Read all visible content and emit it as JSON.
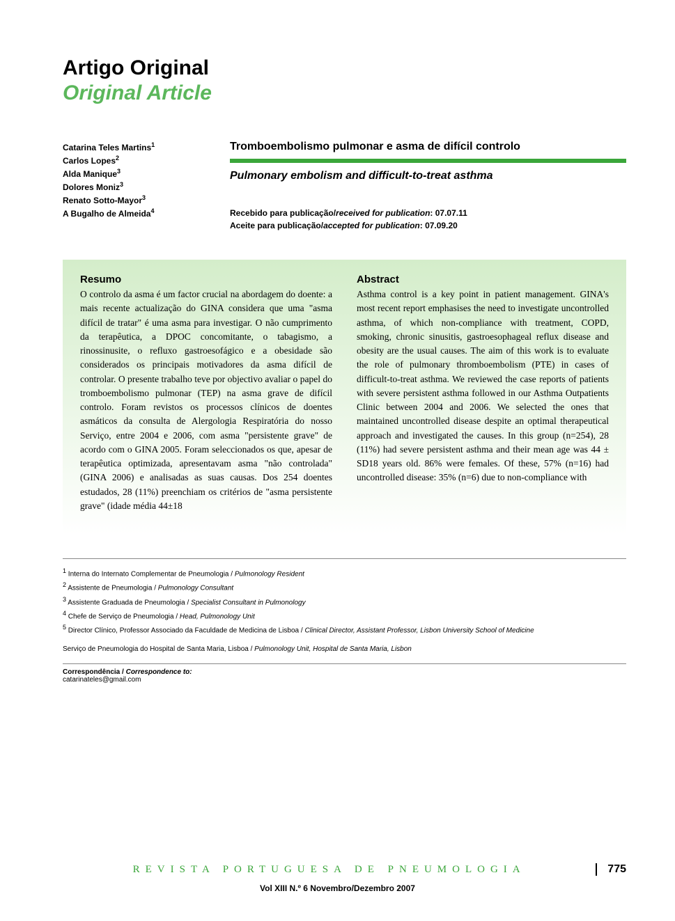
{
  "header": {
    "title_pt": "Artigo Original",
    "title_en": "Original Article"
  },
  "authors": [
    {
      "name": "Catarina Teles Martins",
      "ref": "1"
    },
    {
      "name": "Carlos Lopes",
      "ref": "2"
    },
    {
      "name": "Alda Manique",
      "ref": "3"
    },
    {
      "name": "Dolores Moniz",
      "ref": "3"
    },
    {
      "name": "Renato Sotto-Mayor",
      "ref": "3"
    },
    {
      "name": "A Bugalho de Almeida",
      "ref": "4"
    }
  ],
  "article": {
    "title_pt": "Tromboembolismo pulmonar e asma de difícil controlo",
    "title_en": "Pulmonary embolism and difficult-to-treat asthma"
  },
  "dates": {
    "received_label_pt": "Recebido para publicação/",
    "received_label_en": "received for publication",
    "received_value": ": 07.07.11",
    "accepted_label_pt": "Aceite para publicação/",
    "accepted_label_en": "accepted for publication",
    "accepted_value": ": 07.09.20"
  },
  "abstracts": {
    "pt": {
      "heading": "Resumo",
      "text": "O controlo da asma é um factor crucial na abordagem do doente: a mais recente actualização do GINA considera que uma \"asma difícil de tratar\" é uma asma para investigar. O não cumprimento da terapêutica, a DPOC concomitante, o tabagismo, a rinossinusite, o refluxo gastroesofágico e a obesidade são considerados os principais motivadores da asma difícil de controlar.\nO presente trabalho teve por objectivo avaliar o papel do tromboembolismo pulmonar (TEP) na asma grave de difícil controlo.\nForam revistos os processos clínicos de doentes asmáticos da consulta de Alergologia Respiratória do nosso Serviço, entre 2004 e 2006, com asma \"persistente grave\" de acordo com o GINA 2005. Foram seleccionados os que, apesar de terapêutica optimizada, apresentavam asma \"não controlada\" (GINA 2006) e analisadas as suas causas. Dos 254 doentes estudados, 28 (11%) preenchiam os critérios de \"asma persistente grave\" (idade média 44±18"
    },
    "en": {
      "heading": "Abstract",
      "text": "Asthma control is a key point in patient management. GINA's most recent report emphasises the need to investigate uncontrolled asthma, of which non-compliance with treatment, COPD, smoking, chronic sinusitis, gastroesophageal reflux disease and obesity are the usual causes.\nThe aim of this work is to evaluate the role of pulmonary thromboembolism (PTE) in cases of difficult-to-treat asthma. We reviewed the case reports of patients with severe persistent asthma followed in our Asthma Outpatients Clinic between 2004 and 2006. We selected the ones that maintained uncontrolled disease despite an optimal therapeutical approach and investigated the causes.\nIn this group (n=254), 28 (11%) had severe persistent asthma and their mean age was 44 ± SD18 years old. 86% were females. Of these, 57% (n=16) had uncontrolled disease: 35% (n=6) due to non-compliance with"
    }
  },
  "footnotes": [
    {
      "num": "1",
      "pt": "Interna do Internato Complementar de Pneumologia",
      "en": "Pulmonology Resident"
    },
    {
      "num": "2",
      "pt": "Assistente de Pneumologia",
      "en": "Pulmonology Consultant"
    },
    {
      "num": "3",
      "pt": "Assistente Graduada de Pneumologia",
      "en": "Specialist Consultant in Pulmonology"
    },
    {
      "num": "4",
      "pt": "Chefe de Serviço de Pneumologia",
      "en": "Head, Pulmonology Unit"
    },
    {
      "num": "5",
      "pt": "Director Clínico, Professor Associado da Faculdade de Medicina de Lisboa",
      "en": "Clinical Director, Assistant Professor, Lisbon University School of Medicine"
    }
  ],
  "service": {
    "pt": "Serviço de Pneumologia do Hospital de Santa Maria, Lisboa",
    "en": "Pulmonology Unit, Hospital de Santa Maria, Lisbon"
  },
  "correspondence": {
    "label_pt": "Correspondência",
    "label_en": "Correspondence to:",
    "email": "catarinateles@gmail.com"
  },
  "footer": {
    "journal": "REVISTA PORTUGUESA DE PNEUMOLOGIA",
    "page": "775",
    "volume": "Vol XIII  N.º 6  Novembro/Dezembro  2007"
  },
  "colors": {
    "green_accent": "#3aa63a",
    "green_light": "#5bb75b",
    "abstract_bg_start": "#d4edca",
    "abstract_bg_end": "#ffffff",
    "text": "#000000",
    "background": "#ffffff"
  },
  "typography": {
    "main_title_fontsize": 30,
    "article_title_fontsize": 16,
    "abstract_heading_fontsize": 15,
    "abstract_text_fontsize": 13.5,
    "author_fontsize": 12,
    "footnote_fontsize": 10,
    "journal_footer_fontsize": 15,
    "journal_letter_spacing": 8
  }
}
